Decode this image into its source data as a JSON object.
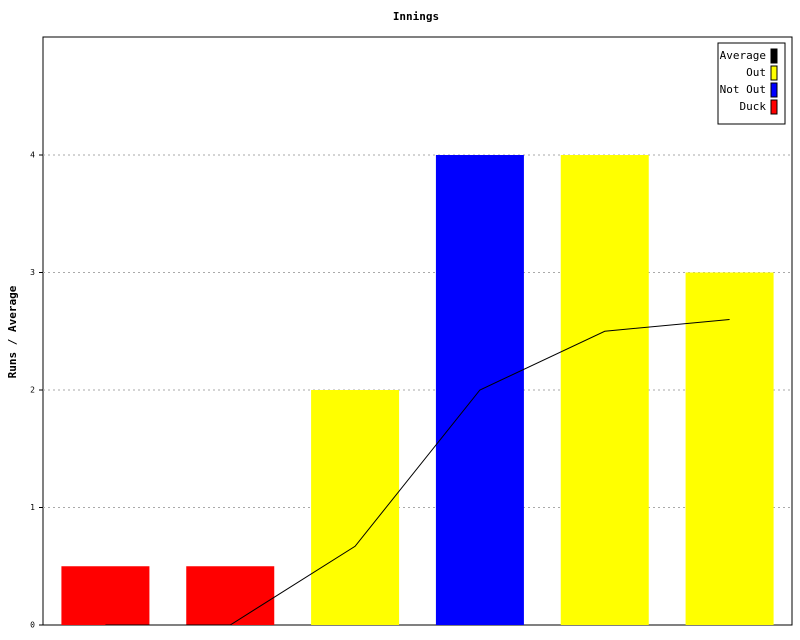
{
  "chart_data": {
    "type": "bar",
    "title": "Innings",
    "y_label": "Runs / Average",
    "categories": [
      null,
      null,
      null,
      null,
      null,
      null
    ],
    "series": [
      {
        "name": "Average",
        "type": "line",
        "color": "#000000",
        "values": [
          0,
          0,
          0.67,
          2,
          2.5,
          2.6
        ]
      },
      {
        "name": "Out",
        "color": "#ffff00",
        "values": [
          null,
          null,
          2,
          null,
          4,
          3
        ]
      },
      {
        "name": "Not Out",
        "color": "#0000ff",
        "values": [
          null,
          null,
          null,
          4,
          null,
          null
        ]
      },
      {
        "name": "Duck",
        "color": "#ff0000",
        "values": [
          0.5,
          0.5,
          null,
          null,
          null,
          null
        ]
      }
    ],
    "ylim": [
      0,
      5
    ],
    "yticks": [
      0,
      1,
      2,
      3,
      4
    ],
    "grid": true,
    "legend": "top-right"
  }
}
